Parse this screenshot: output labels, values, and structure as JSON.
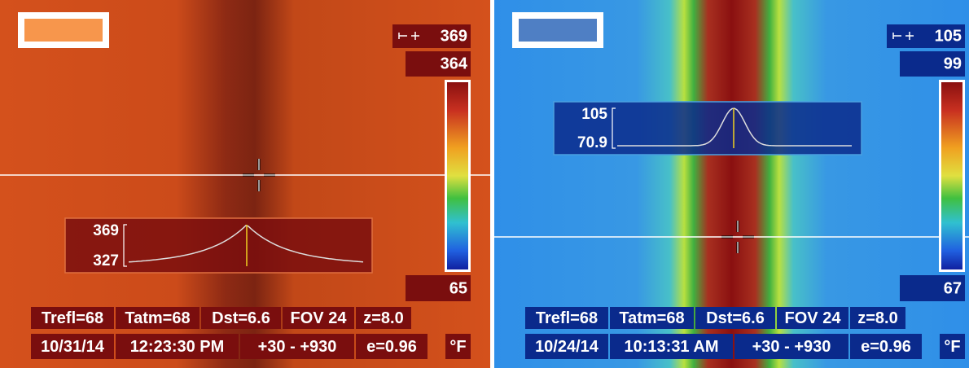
{
  "panels": [
    {
      "max_marker": "369",
      "scale_max": "364",
      "scale_min": "65",
      "profile": {
        "max": "369",
        "min": "327"
      },
      "status": [
        [
          "Trefl=68",
          "Tatm=68",
          "Dst=6.6",
          "FOV 24",
          "z=8.0"
        ],
        [
          "10/31/14",
          "12:23:30 PM",
          "+30 -  +930",
          "e=0.96",
          "°F"
        ]
      ]
    },
    {
      "max_marker": "105",
      "scale_max": "99",
      "scale_min": "67",
      "profile": {
        "max": "105",
        "min": "70.9"
      },
      "status": [
        [
          "Trefl=68",
          "Tatm=68",
          "Dst=6.6",
          "FOV 24",
          "z=8.0"
        ],
        [
          "10/24/14",
          "10:13:31 AM",
          "+30 -  +930",
          "e=0.96",
          "°F"
        ]
      ]
    }
  ]
}
